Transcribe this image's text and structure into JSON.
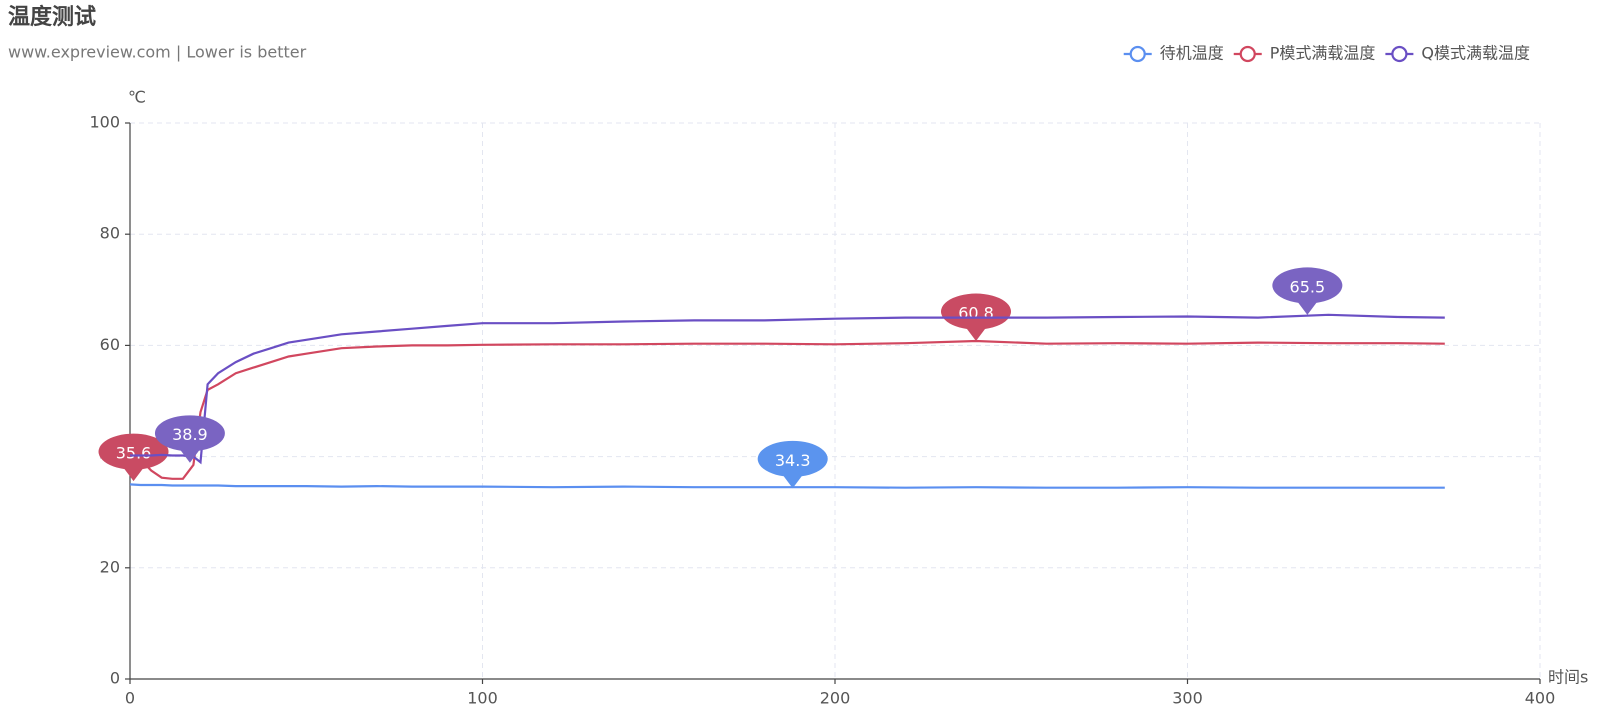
{
  "chart_data": {
    "type": "line",
    "title": "温度测试",
    "subtitle": "www.expreview.com  | Lower is better",
    "y_label": "℃",
    "x_label": "时间s",
    "grid": true,
    "legend": "top-right",
    "x": [
      0,
      3,
      6,
      9,
      12,
      15,
      18,
      20,
      22,
      25,
      30,
      35,
      40,
      45,
      50,
      60,
      70,
      80,
      90,
      100,
      120,
      140,
      160,
      180,
      200,
      220,
      240,
      260,
      280,
      300,
      320,
      340,
      360,
      373
    ],
    "xlim": [
      0,
      400
    ],
    "xticks": [
      0,
      100,
      200,
      300,
      400
    ],
    "ylim": [
      0,
      100
    ],
    "yticks": [
      0,
      20,
      40,
      60,
      80,
      100
    ],
    "series": [
      {
        "name": "待机温度",
        "color": "#5b8ff0",
        "values": [
          35.0,
          34.9,
          34.9,
          34.9,
          34.8,
          34.8,
          34.8,
          34.8,
          34.8,
          34.8,
          34.7,
          34.7,
          34.7,
          34.7,
          34.7,
          34.6,
          34.7,
          34.6,
          34.6,
          34.6,
          34.5,
          34.6,
          34.5,
          34.5,
          34.5,
          34.4,
          34.5,
          34.4,
          34.4,
          34.5,
          34.4,
          34.4,
          34.4,
          34.4
        ],
        "mark_points": [
          {
            "x": 188,
            "value": 34.3
          }
        ],
        "pin_color": "#5b94ee"
      },
      {
        "name": "P模式满载温度",
        "color": "#d1475f",
        "values": [
          40.5,
          39.5,
          37.5,
          36.2,
          36.0,
          36.0,
          38.5,
          48,
          52,
          53,
          55,
          56,
          57,
          58,
          58.5,
          59.5,
          59.8,
          60,
          60,
          60.1,
          60.2,
          60.2,
          60.3,
          60.3,
          60.2,
          60.4,
          60.8,
          60.3,
          60.4,
          60.3,
          60.5,
          60.4,
          60.4,
          60.3
        ],
        "mark_points": [
          {
            "x": 1,
            "value": 35.6
          },
          {
            "x": 240,
            "value": 60.8
          }
        ],
        "pin_color": "#c94b63"
      },
      {
        "name": "Q模式满载温度",
        "color": "#6a4fc4",
        "values": [
          40.2,
          40.2,
          40.2,
          40.3,
          40.2,
          40.2,
          40.0,
          39.0,
          53,
          55,
          57,
          58.5,
          59.5,
          60.5,
          61,
          62,
          62.5,
          63,
          63.5,
          64,
          64,
          64.3,
          64.5,
          64.5,
          64.8,
          65,
          65,
          65,
          65.1,
          65.2,
          65.0,
          65.5,
          65.1,
          65.0
        ],
        "mark_points": [
          {
            "x": 17,
            "value": 38.9
          },
          {
            "x": 334,
            "value": 65.5
          }
        ],
        "pin_color": "#7a64c2"
      }
    ]
  }
}
